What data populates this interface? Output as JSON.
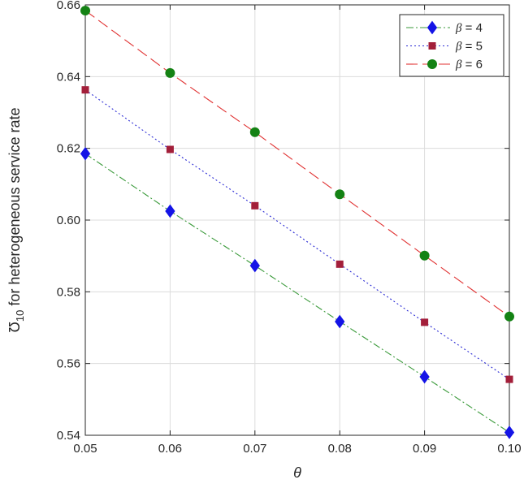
{
  "chart_data": {
    "type": "line",
    "xlabel": "θ",
    "ylabel_symbol": "Ʊ",
    "ylabel_subscript": "10",
    "ylabel_text": " for heterogeneous service rate",
    "xlim": [
      0.05,
      0.1
    ],
    "ylim": [
      0.54,
      0.66
    ],
    "x": [
      0.05,
      0.06,
      0.07,
      0.08,
      0.09,
      0.1
    ],
    "x_tick_labels": [
      "0.05",
      "0.06",
      "0.07",
      "0.08",
      "0.09",
      "0.10"
    ],
    "y_ticks": [
      0.54,
      0.56,
      0.58,
      0.6,
      0.62,
      0.64,
      0.66
    ],
    "y_tick_labels": [
      "0.54",
      "0.56",
      "0.58",
      "0.60",
      "0.62",
      "0.64",
      "0.66"
    ],
    "grid": true,
    "legend_position": "top-right",
    "series": [
      {
        "name_symbol": "β",
        "name_text": " = 4",
        "values": [
          0.6185,
          0.6025,
          0.5873,
          0.5717,
          0.5563,
          0.5408
        ],
        "line_color": "#3a9a3a",
        "marker_color": "#1414e6",
        "line_style": "dash-dot",
        "marker": "diamond"
      },
      {
        "name_symbol": "β",
        "name_text": " = 5",
        "values": [
          0.6363,
          0.6197,
          0.604,
          0.5877,
          0.5715,
          0.5556
        ],
        "line_color": "#2a2ad4",
        "marker_color": "#a31f3a",
        "line_style": "dotted",
        "marker": "square"
      },
      {
        "name_symbol": "β",
        "name_text": " = 6",
        "values": [
          0.6584,
          0.641,
          0.6245,
          0.6072,
          0.5901,
          0.5731
        ],
        "line_color": "#e03030",
        "marker_color": "#148214",
        "line_style": "dashed",
        "marker": "circle"
      }
    ]
  }
}
